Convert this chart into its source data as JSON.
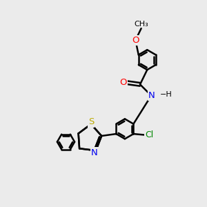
{
  "bg_color": "#ebebeb",
  "bond_color": "#000000",
  "bond_width": 1.8,
  "atom_colors": {
    "O": "#ff0000",
    "N": "#0000ee",
    "S": "#bbaa00",
    "Cl": "#008800",
    "C": "#000000",
    "H": "#000000"
  },
  "font_size": 8.5,
  "figsize": [
    3.0,
    3.0
  ],
  "dpi": 100
}
